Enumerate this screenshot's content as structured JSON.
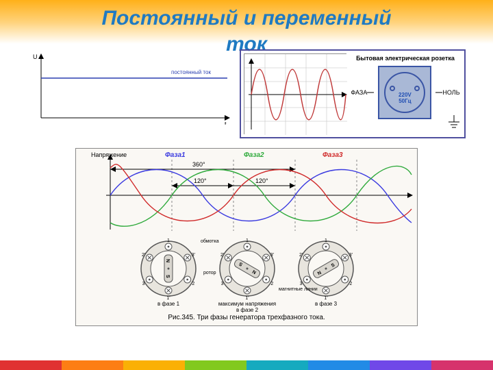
{
  "title_line1": "Постоянный и переменный",
  "title_line2": "ток",
  "title_color": "#1f7ac2",
  "header_gradient": [
    "#ffb019",
    "#ffd27a",
    "#ffffff"
  ],
  "rainbow_colors": [
    "#e03131",
    "#fd7e14",
    "#fab005",
    "#82c91e",
    "#15aabf",
    "#228be6",
    "#7048e8",
    "#d6336c"
  ],
  "dc_chart": {
    "type": "line",
    "y_label": "U",
    "x_label": "t",
    "legend": "постоянный ток",
    "line_color": "#2a3fb0",
    "line_y": 0.35,
    "axis_color": "#000000",
    "background": "#ffffff"
  },
  "scope_chart": {
    "type": "sine",
    "cycles": 3,
    "amplitude": 0.78,
    "line_color": "#c03a3a",
    "axis_color": "#000000",
    "grid_color": "#bdbdbd",
    "background": "#ffffff"
  },
  "socket": {
    "title": "Бытовая электрическая розетка",
    "left_label": "ФАЗА",
    "right_label": "НОЛЬ",
    "voltage": "220V",
    "freq": "50Гц",
    "border_color": "#4f4f9e",
    "face_color": "#a9b8d6",
    "stroke_color": "#3a55a5"
  },
  "three_phase": {
    "type": "sine-multi",
    "phases": [
      {
        "label": "Фаза1",
        "color": "#3a3ae0",
        "offset_deg": 0
      },
      {
        "label": "Фаза2",
        "color": "#2faa3c",
        "offset_deg": 120
      },
      {
        "label": "Фаза3",
        "color": "#d02a2a",
        "offset_deg": 240
      }
    ],
    "y_label": "Напряжение",
    "x_span_deg": 540,
    "markers_deg": [
      120,
      240,
      360
    ],
    "marker_120_label": "120°",
    "marker_360_label": "360°",
    "dash_color": "#888888",
    "axis_color": "#000000",
    "background": "#faf8f4",
    "rotors": [
      {
        "caption": "в фазе 1",
        "angle_deg": 90
      },
      {
        "caption": "максимум напряжения в фазе 2",
        "angle_deg": 210
      },
      {
        "caption": "в фазе 3",
        "angle_deg": 330
      }
    ],
    "rotor_annotations": {
      "winding": "обмотка",
      "rotor": "ротор",
      "field_lines": "магнитные линии"
    },
    "rotor_terminal_labels": [
      "1",
      "2",
      "3",
      "1'",
      "2'",
      "3'"
    ],
    "rotor_pole_labels": [
      "N",
      "S"
    ],
    "rotor_stroke": "#555555",
    "rotor_fill": "#d9d6cf",
    "figure_caption": "Рис.345. Три фазы генератора трехфазного тока."
  }
}
